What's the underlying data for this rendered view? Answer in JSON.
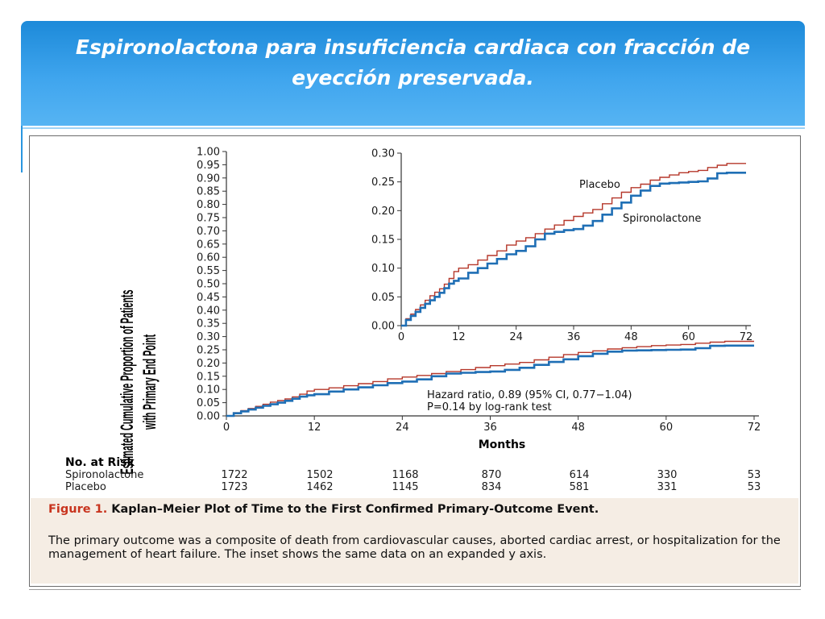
{
  "slide": {
    "title": "Espironolactona para insuficiencia cardiaca con fracción de eyección preservada."
  },
  "chart_data": [
    {
      "type": "line",
      "id": "main",
      "title": "",
      "xlabel": "Months",
      "ylabel_line1": "Estimated Cumulative Proportion of Patients",
      "ylabel_line2": "with Primary End Point",
      "xlim": [
        0,
        72
      ],
      "ylim": [
        0,
        1.0
      ],
      "x_ticks": [
        0,
        12,
        24,
        36,
        48,
        60,
        72
      ],
      "y_ticks": [
        0.0,
        0.05,
        0.1,
        0.15,
        0.2,
        0.25,
        0.3,
        0.35,
        0.4,
        0.45,
        0.5,
        0.55,
        0.6,
        0.65,
        0.7,
        0.75,
        0.8,
        0.85,
        0.9,
        0.95,
        1.0
      ],
      "series": [
        {
          "name": "Placebo",
          "color": "#b5372a",
          "points": [
            [
              0,
              0
            ],
            [
              1,
              0.012
            ],
            [
              2,
              0.02
            ],
            [
              3,
              0.028
            ],
            [
              4,
              0.036
            ],
            [
              5,
              0.044
            ],
            [
              6,
              0.052
            ],
            [
              7,
              0.058
            ],
            [
              8,
              0.064
            ],
            [
              9,
              0.072
            ],
            [
              10,
              0.082
            ],
            [
              11,
              0.094
            ],
            [
              12,
              0.1
            ],
            [
              14,
              0.106
            ],
            [
              16,
              0.114
            ],
            [
              18,
              0.122
            ],
            [
              20,
              0.13
            ],
            [
              22,
              0.14
            ],
            [
              24,
              0.147
            ],
            [
              26,
              0.153
            ],
            [
              28,
              0.16
            ],
            [
              30,
              0.168
            ],
            [
              32,
              0.175
            ],
            [
              34,
              0.183
            ],
            [
              36,
              0.19
            ],
            [
              38,
              0.196
            ],
            [
              40,
              0.202
            ],
            [
              42,
              0.212
            ],
            [
              44,
              0.222
            ],
            [
              46,
              0.232
            ],
            [
              48,
              0.24
            ],
            [
              50,
              0.246
            ],
            [
              52,
              0.253
            ],
            [
              54,
              0.258
            ],
            [
              56,
              0.262
            ],
            [
              58,
              0.266
            ],
            [
              60,
              0.268
            ],
            [
              62,
              0.27
            ],
            [
              64,
              0.275
            ],
            [
              66,
              0.279
            ],
            [
              68,
              0.282
            ],
            [
              70,
              0.282
            ],
            [
              72,
              0.282
            ]
          ]
        },
        {
          "name": "Spironolactone",
          "color": "#1f6fb5",
          "points": [
            [
              0,
              0
            ],
            [
              1,
              0.01
            ],
            [
              2,
              0.017
            ],
            [
              3,
              0.024
            ],
            [
              4,
              0.031
            ],
            [
              5,
              0.038
            ],
            [
              6,
              0.044
            ],
            [
              7,
              0.05
            ],
            [
              8,
              0.057
            ],
            [
              9,
              0.065
            ],
            [
              10,
              0.073
            ],
            [
              11,
              0.078
            ],
            [
              12,
              0.082
            ],
            [
              14,
              0.092
            ],
            [
              16,
              0.1
            ],
            [
              18,
              0.108
            ],
            [
              20,
              0.116
            ],
            [
              22,
              0.124
            ],
            [
              24,
              0.13
            ],
            [
              26,
              0.138
            ],
            [
              28,
              0.15
            ],
            [
              30,
              0.16
            ],
            [
              32,
              0.163
            ],
            [
              34,
              0.166
            ],
            [
              36,
              0.168
            ],
            [
              38,
              0.174
            ],
            [
              40,
              0.182
            ],
            [
              42,
              0.193
            ],
            [
              44,
              0.204
            ],
            [
              46,
              0.214
            ],
            [
              48,
              0.226
            ],
            [
              50,
              0.235
            ],
            [
              52,
              0.243
            ],
            [
              54,
              0.247
            ],
            [
              56,
              0.248
            ],
            [
              58,
              0.249
            ],
            [
              60,
              0.25
            ],
            [
              62,
              0.251
            ],
            [
              64,
              0.256
            ],
            [
              66,
              0.265
            ],
            [
              68,
              0.266
            ],
            [
              70,
              0.266
            ],
            [
              72,
              0.266
            ]
          ]
        }
      ],
      "annotations": {
        "hazard_ratio": "Hazard ratio, 0.89 (95% CI, 0.77−1.04)",
        "p_value": "P=0.14 by log-rank test"
      }
    },
    {
      "type": "line",
      "id": "inset",
      "xlim": [
        0,
        72
      ],
      "ylim": [
        0,
        0.3
      ],
      "x_ticks": [
        0,
        12,
        24,
        36,
        48,
        60,
        72
      ],
      "y_ticks": [
        0.0,
        0.05,
        0.1,
        0.15,
        0.2,
        0.25,
        0.3
      ],
      "series_labels": [
        "Placebo",
        "Spironolactone"
      ]
    }
  ],
  "risk_table": {
    "heading": "No. at Risk",
    "rows": [
      {
        "label": "Spironolactone",
        "values": [
          "1722",
          "1502",
          "1168",
          "870",
          "614",
          "330",
          "53"
        ]
      },
      {
        "label": "Placebo",
        "values": [
          "1723",
          "1462",
          "1145",
          "834",
          "581",
          "331",
          "53"
        ]
      }
    ]
  },
  "caption": {
    "figure_label": "Figure 1.",
    "heading": "Kaplan–Meier Plot of Time to the First Confirmed Primary-Outcome Event.",
    "body": "The primary outcome was a composite of death from cardiovascular causes, aborted cardiac arrest, or hospitalization for the management of heart failure. The inset shows the same data on an expanded y axis."
  }
}
